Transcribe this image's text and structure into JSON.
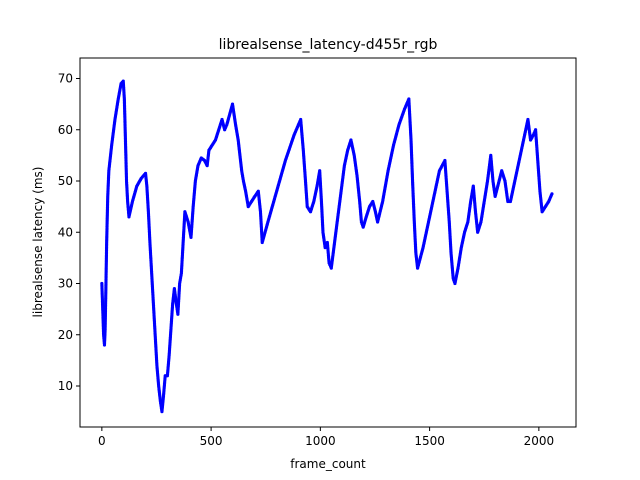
{
  "chart_data": {
    "type": "scatter",
    "title": "librealsense_latency-d455r_rgb",
    "xlabel": "frame_count",
    "ylabel": "librealsense latency (ms)",
    "xlim": [
      -100,
      2170
    ],
    "ylim": [
      2,
      74
    ],
    "x_ticks": [
      0,
      500,
      1000,
      1500,
      2000
    ],
    "y_ticks": [
      10,
      20,
      30,
      40,
      50,
      60,
      70
    ],
    "grid": false,
    "legend": "none",
    "marker_color": "#0000ff",
    "series": [
      {
        "segments": [
          [
            0,
            30
          ],
          [
            4,
            25
          ],
          [
            8,
            20
          ],
          [
            12,
            18
          ],
          [
            15,
            21
          ],
          [
            18,
            28
          ],
          [
            22,
            38
          ],
          [
            27,
            47
          ],
          [
            32,
            52
          ],
          [
            45,
            57
          ],
          [
            60,
            62
          ],
          [
            75,
            66
          ],
          [
            88,
            69
          ],
          [
            98,
            69.5
          ],
          [
            103,
            66
          ],
          [
            108,
            58
          ],
          [
            113,
            50
          ],
          [
            118,
            46
          ],
          [
            124,
            43
          ],
          [
            140,
            46
          ],
          [
            160,
            49
          ],
          [
            180,
            50.5
          ],
          [
            200,
            51.5
          ],
          [
            206,
            49
          ],
          [
            213,
            44
          ],
          [
            220,
            38
          ],
          [
            228,
            32
          ],
          [
            236,
            26
          ],
          [
            244,
            20
          ],
          [
            252,
            14
          ],
          [
            260,
            10
          ],
          [
            268,
            7
          ],
          [
            275,
            5
          ],
          [
            282,
            8
          ],
          [
            290,
            12
          ],
          [
            300,
            12
          ],
          [
            308,
            16
          ],
          [
            316,
            21
          ],
          [
            324,
            26
          ],
          [
            332,
            29
          ],
          [
            341,
            26
          ],
          [
            348,
            24
          ],
          [
            356,
            30
          ],
          [
            364,
            32
          ],
          [
            372,
            38
          ],
          [
            380,
            44
          ],
          [
            395,
            42
          ],
          [
            408,
            39
          ],
          [
            418,
            45
          ],
          [
            428,
            50
          ],
          [
            440,
            53
          ],
          [
            455,
            54.5
          ],
          [
            470,
            54
          ],
          [
            482,
            53
          ],
          [
            490,
            56
          ],
          [
            505,
            57
          ],
          [
            520,
            58
          ],
          [
            535,
            60
          ],
          [
            550,
            62
          ],
          [
            562,
            60
          ],
          [
            572,
            61
          ],
          [
            585,
            63
          ],
          [
            598,
            65
          ],
          [
            612,
            61
          ],
          [
            624,
            58
          ],
          [
            632,
            55
          ],
          [
            640,
            52
          ],
          [
            648,
            50
          ],
          [
            658,
            48
          ],
          [
            670,
            45
          ],
          [
            685,
            46
          ],
          [
            700,
            47
          ],
          [
            716,
            48
          ],
          [
            726,
            44
          ],
          [
            734,
            38
          ],
          [
            760,
            42
          ],
          [
            800,
            48
          ],
          [
            840,
            54
          ],
          [
            880,
            59
          ],
          [
            910,
            62
          ],
          [
            922,
            56
          ],
          [
            932,
            50
          ],
          [
            940,
            45
          ],
          [
            955,
            44
          ],
          [
            970,
            46
          ],
          [
            985,
            49
          ],
          [
            997,
            52
          ],
          [
            1005,
            46
          ],
          [
            1012,
            40
          ],
          [
            1022,
            37
          ],
          [
            1032,
            38
          ],
          [
            1040,
            34
          ],
          [
            1050,
            33
          ],
          [
            1065,
            38
          ],
          [
            1080,
            43
          ],
          [
            1095,
            48
          ],
          [
            1110,
            53
          ],
          [
            1125,
            56
          ],
          [
            1140,
            58
          ],
          [
            1155,
            55
          ],
          [
            1168,
            51
          ],
          [
            1180,
            46
          ],
          [
            1188,
            42
          ],
          [
            1196,
            41
          ],
          [
            1210,
            43
          ],
          [
            1225,
            45
          ],
          [
            1240,
            46
          ],
          [
            1252,
            44
          ],
          [
            1262,
            42
          ],
          [
            1285,
            46
          ],
          [
            1310,
            52
          ],
          [
            1335,
            57
          ],
          [
            1360,
            61
          ],
          [
            1385,
            64
          ],
          [
            1405,
            66
          ],
          [
            1415,
            58
          ],
          [
            1422,
            50
          ],
          [
            1430,
            42
          ],
          [
            1437,
            36
          ],
          [
            1445,
            33
          ],
          [
            1470,
            37
          ],
          [
            1495,
            42
          ],
          [
            1520,
            47
          ],
          [
            1545,
            52
          ],
          [
            1570,
            54
          ],
          [
            1580,
            48
          ],
          [
            1590,
            42
          ],
          [
            1598,
            36
          ],
          [
            1608,
            31
          ],
          [
            1616,
            30
          ],
          [
            1630,
            33
          ],
          [
            1645,
            37
          ],
          [
            1660,
            40
          ],
          [
            1675,
            42
          ],
          [
            1688,
            46
          ],
          [
            1700,
            49
          ],
          [
            1710,
            44
          ],
          [
            1720,
            40
          ],
          [
            1735,
            42
          ],
          [
            1750,
            46
          ],
          [
            1765,
            50
          ],
          [
            1780,
            55
          ],
          [
            1790,
            50
          ],
          [
            1800,
            47
          ],
          [
            1812,
            49
          ],
          [
            1830,
            52
          ],
          [
            1845,
            50
          ],
          [
            1858,
            46
          ],
          [
            1870,
            46
          ],
          [
            1890,
            50
          ],
          [
            1910,
            54
          ],
          [
            1930,
            58
          ],
          [
            1950,
            62
          ],
          [
            1962,
            58
          ],
          [
            1975,
            59
          ],
          [
            1985,
            60
          ],
          [
            1995,
            54
          ],
          [
            2005,
            48
          ],
          [
            2015,
            44
          ],
          [
            2030,
            45
          ],
          [
            2045,
            46
          ],
          [
            2060,
            47.5
          ]
        ]
      }
    ]
  }
}
